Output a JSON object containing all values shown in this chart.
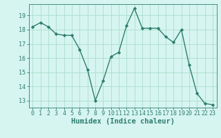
{
  "x": [
    0,
    1,
    2,
    3,
    4,
    5,
    6,
    7,
    8,
    9,
    10,
    11,
    12,
    13,
    14,
    15,
    16,
    17,
    18,
    19,
    20,
    21,
    22,
    23
  ],
  "y": [
    18.2,
    18.5,
    18.2,
    17.7,
    17.6,
    17.6,
    16.6,
    15.2,
    13.0,
    14.4,
    16.1,
    16.4,
    18.3,
    19.5,
    18.1,
    18.1,
    18.1,
    17.5,
    17.1,
    18.0,
    15.5,
    13.5,
    12.8,
    12.7
  ],
  "line_color": "#2e7d6e",
  "marker": "D",
  "marker_size": 2.2,
  "linewidth": 1.0,
  "bg_color": "#d6f5f0",
  "grid_color": "#aaddcc",
  "xlabel": "Humidex (Indice chaleur)",
  "xlabel_fontsize": 7.5,
  "xlim": [
    -0.5,
    23.5
  ],
  "ylim": [
    12.5,
    19.8
  ],
  "yticks": [
    13,
    14,
    15,
    16,
    17,
    18,
    19
  ],
  "xticks": [
    0,
    1,
    2,
    3,
    4,
    5,
    6,
    7,
    8,
    9,
    10,
    11,
    12,
    13,
    14,
    15,
    16,
    17,
    18,
    19,
    20,
    21,
    22,
    23
  ],
  "tick_fontsize": 6.0,
  "font_family": "monospace"
}
